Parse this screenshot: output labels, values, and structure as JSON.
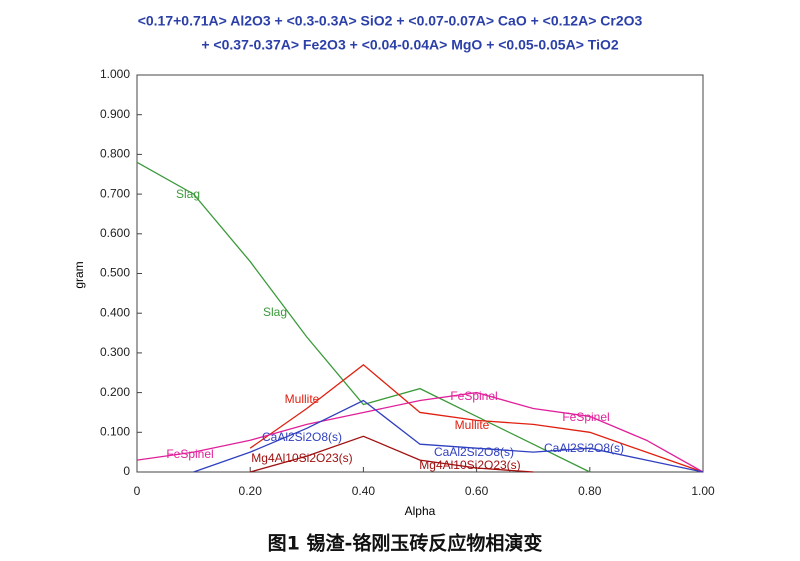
{
  "chart_data": {
    "type": "line",
    "title": "<0.17+0.71A> Al2O3 +  <0.3-0.3A> SiO2 +  <0.07-0.07A> CaO +  <0.12A> Cr2O3",
    "subtitle": "+ <0.37-0.37A> Fe2O3 +  <0.04-0.04A> MgO +  <0.05-0.05A> TiO2",
    "x_label": "Alpha",
    "y_label": "gram",
    "caption": "图1 锡渣-铬刚玉砖反应物相演变",
    "x": [
      0,
      0.1,
      0.2,
      0.3,
      0.4,
      0.5,
      0.6,
      0.7,
      0.8,
      0.9,
      1.0
    ],
    "xlim": [
      0,
      1
    ],
    "ylim": [
      0,
      1
    ],
    "xticks": [
      0,
      {
        "value": 0.2,
        "label": "0.20"
      },
      {
        "value": 0.4,
        "label": "0.40"
      },
      {
        "value": 0.6,
        "label": "0.60"
      },
      {
        "value": 0.8,
        "label": "0.80"
      },
      {
        "value": 1,
        "label": "1.00"
      }
    ],
    "yticks": [
      0,
      {
        "value": 0.1,
        "label": "0.100"
      },
      {
        "value": 0.2,
        "label": "0.200"
      },
      {
        "value": 0.3,
        "label": "0.300"
      },
      {
        "value": 0.4,
        "label": "0.400"
      },
      {
        "value": 0.5,
        "label": "0.500"
      },
      {
        "value": 0.6,
        "label": "0.600"
      },
      {
        "value": 0.7,
        "label": "0.700"
      },
      {
        "value": 0.8,
        "label": "0.800"
      },
      {
        "value": 0.9,
        "label": "0.900"
      },
      {
        "value": 1,
        "label": "1.000"
      }
    ],
    "series": [
      {
        "name": "Slag",
        "color": "#3a9a3a",
        "values": [
          0.78,
          0.7,
          0.53,
          0.34,
          0.17,
          0.21,
          0.14,
          0.07,
          0.0,
          null,
          null
        ]
      },
      {
        "name": "Mullite",
        "color": "#e02010",
        "values": [
          null,
          null,
          0.06,
          0.16,
          0.27,
          0.15,
          0.13,
          0.12,
          0.1,
          0.05,
          0.0
        ]
      },
      {
        "name": "FeSpinel",
        "color": "#e0209a",
        "values": [
          0.03,
          0.05,
          0.08,
          0.12,
          0.15,
          0.18,
          0.2,
          0.16,
          0.14,
          0.08,
          0.0
        ]
      },
      {
        "name": "CaAl2Si2O8(s)",
        "color": "#3040c0",
        "values": [
          null,
          0,
          0.05,
          0.11,
          0.18,
          0.07,
          0.06,
          0.05,
          0.06,
          0.03,
          0.0
        ]
      },
      {
        "name": "Mg4Al10Si2O23(s)",
        "color": "#a01010",
        "values": [
          null,
          null,
          0,
          0.04,
          0.09,
          0.03,
          0.01,
          0,
          null,
          null,
          null
        ]
      }
    ]
  }
}
